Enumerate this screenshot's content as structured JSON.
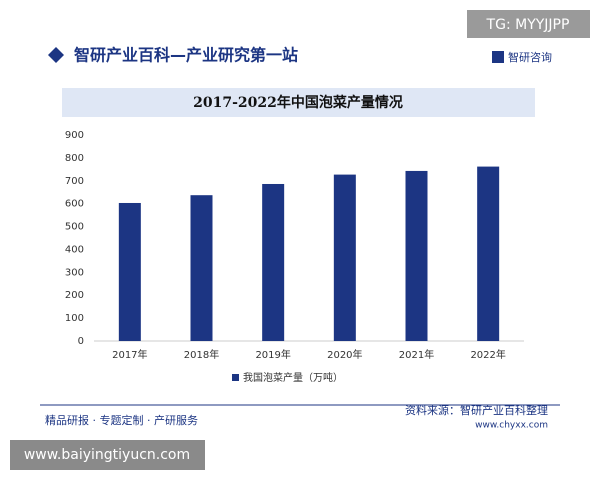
{
  "header": {
    "title": "智研产业百科—产业研究第一站",
    "logo": "智研咨询"
  },
  "overlay": {
    "top_right": "TG: MYYJJPP",
    "bottom_left": "www.baiyingtiyucn.com"
  },
  "chart_data": {
    "type": "bar",
    "title": "2017-2022年中国泡菜产量情况",
    "categories": [
      "2017年",
      "2018年",
      "2019年",
      "2020年",
      "2021年",
      "2022年"
    ],
    "series": [
      {
        "name": "我国泡菜产量（万吨）",
        "color": "#1c3583",
        "values": [
          603,
          637,
          686,
          727,
          743,
          762
        ]
      }
    ],
    "ylim": [
      0,
      900
    ],
    "yticks": [
      0,
      100,
      200,
      300,
      400,
      500,
      600,
      700,
      800,
      900
    ],
    "grid": false
  },
  "footer": {
    "left": "精品研报 · 专题定制 · 产研服务",
    "source": "资料来源：智研产业百科整理",
    "url": "www.chyxx.com"
  }
}
